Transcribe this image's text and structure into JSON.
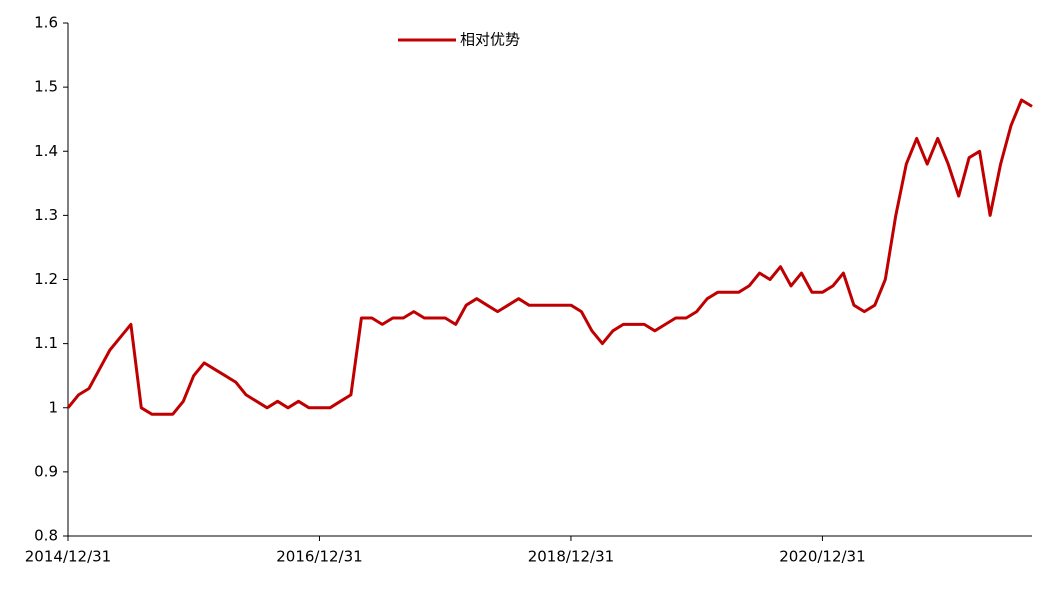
{
  "chart_data": {
    "type": "line",
    "categories": [
      "2014/12/31",
      null,
      null,
      null,
      null,
      null,
      null,
      null,
      null,
      null,
      null,
      null,
      null,
      null,
      null,
      null,
      null,
      null,
      null,
      null,
      null,
      null,
      null,
      null,
      "2016/12/31",
      null,
      null,
      null,
      null,
      null,
      null,
      null,
      null,
      null,
      null,
      null,
      null,
      null,
      null,
      null,
      null,
      null,
      null,
      null,
      null,
      null,
      null,
      null,
      "2018/12/31",
      null,
      null,
      null,
      null,
      null,
      null,
      null,
      null,
      null,
      null,
      null,
      null,
      null,
      null,
      null,
      null,
      null,
      null,
      null,
      null,
      null,
      null,
      null,
      "2020/12/31",
      null,
      null,
      null,
      null,
      null,
      null,
      null,
      null,
      null,
      null,
      null,
      null,
      null,
      null,
      null,
      null,
      null,
      null,
      null,
      null
    ],
    "series": [
      {
        "name": "相对优势",
        "color": "#c00000",
        "values": [
          1.0,
          1.02,
          1.03,
          1.06,
          1.09,
          1.11,
          1.13,
          1.0,
          0.99,
          0.99,
          0.99,
          1.01,
          1.05,
          1.07,
          1.06,
          1.05,
          1.04,
          1.02,
          1.01,
          1.0,
          1.01,
          1.0,
          1.01,
          1.0,
          1.0,
          1.0,
          1.01,
          1.02,
          1.14,
          1.14,
          1.13,
          1.14,
          1.14,
          1.15,
          1.14,
          1.14,
          1.14,
          1.13,
          1.16,
          1.17,
          1.16,
          1.15,
          1.16,
          1.17,
          1.16,
          1.16,
          1.16,
          1.16,
          1.16,
          1.15,
          1.12,
          1.1,
          1.12,
          1.13,
          1.13,
          1.13,
          1.12,
          1.13,
          1.14,
          1.14,
          1.15,
          1.17,
          1.18,
          1.18,
          1.18,
          1.19,
          1.21,
          1.2,
          1.22,
          1.19,
          1.21,
          1.18,
          1.18,
          1.19,
          1.21,
          1.16,
          1.15,
          1.16,
          1.2,
          1.3,
          1.38,
          1.42,
          1.38,
          1.42,
          1.38,
          1.33,
          1.39,
          1.4,
          1.3,
          1.38,
          1.44,
          1.48,
          1.47
        ]
      }
    ],
    "ylim": [
      0.8,
      1.6
    ],
    "yticks": [
      0.8,
      0.9,
      1,
      1.1,
      1.2,
      1.3,
      1.4,
      1.5,
      1.6
    ],
    "legend": "top"
  }
}
